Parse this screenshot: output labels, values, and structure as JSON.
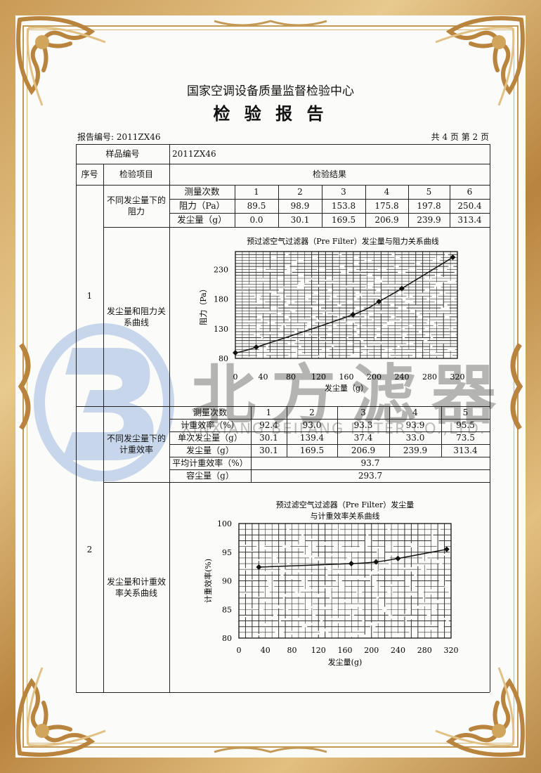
{
  "header": {
    "organization": "国家空调设备质量监督检验中心",
    "title": "检 验 报 告",
    "report_number": "报告编号: 2011ZX46",
    "page_info": "共 4 页 第 2 页"
  },
  "table": {
    "sample_label": "样品编号",
    "sample_value": "2011ZX46",
    "col_no": "序号",
    "col_item": "检验项目",
    "col_result": "检验结果",
    "items": [
      {
        "no": "1",
        "data_label": "不同发尘量下的阻力",
        "rows": [
          [
            "测量次数",
            "1",
            "2",
            "3",
            "4",
            "5",
            "6"
          ],
          [
            "阻力（Pa）",
            "89.5",
            "98.9",
            "153.8",
            "175.8",
            "197.8",
            "250.4"
          ],
          [
            "发尘量（g）",
            "0.0",
            "30.1",
            "169.5",
            "206.9",
            "239.9",
            "313.4"
          ]
        ],
        "curve_label": "发尘量和阻力关系曲线"
      },
      {
        "no": "2",
        "data_label": "不同发尘量下的计重效率",
        "rows": [
          [
            "测量次数",
            "1",
            "2",
            "3",
            "4",
            "5"
          ],
          [
            "计重效率（%）",
            "92.4",
            "93.0",
            "93.3",
            "93.9",
            "95.5"
          ],
          [
            "单次发尘量（g）",
            "30.1",
            "139.4",
            "37.4",
            "33.0",
            "73.5"
          ],
          [
            "发尘量（g）",
            "30.1",
            "169.5",
            "206.9",
            "239.9",
            "313.4"
          ]
        ],
        "avg_label": "平均计重效率（%）",
        "avg_value": "93.7",
        "capacity_label": "容尘量（g）",
        "capacity_value": "293.7",
        "curve_label": "发尘量和计重效率关系曲线"
      }
    ]
  },
  "chart_data": [
    {
      "type": "line",
      "title": "预过滤空气过滤器（Pre Filter）发尘量与阻力关系曲线",
      "xlabel": "发尘量（g）",
      "ylabel": "阻力（Pa）",
      "xlim": [
        0,
        320
      ],
      "ylim": [
        80,
        260
      ],
      "xticks": [
        "0",
        "40",
        "80",
        "120",
        "160",
        "200",
        "240",
        "280",
        "320"
      ],
      "yticks": [
        "80",
        "130",
        "180",
        "230"
      ],
      "grid": true,
      "x": [
        0.0,
        30.1,
        169.5,
        206.9,
        239.9,
        313.4
      ],
      "y": [
        89.5,
        98.9,
        153.8,
        175.8,
        197.8,
        250.4
      ]
    },
    {
      "type": "line",
      "title": [
        "预过滤空气过滤器（Pre Filter）发尘量",
        "与计重效率关系曲线"
      ],
      "xlabel": "发尘量(g)",
      "ylabel": "计重效率(%)",
      "xlim": [
        0,
        320
      ],
      "ylim": [
        80,
        100
      ],
      "xticks": [
        "0",
        "40",
        "80",
        "120",
        "160",
        "200",
        "240",
        "280",
        "320"
      ],
      "yticks": [
        "80",
        "85",
        "90",
        "95",
        "100"
      ],
      "grid": true,
      "x": [
        30.1,
        169.5,
        206.9,
        239.9,
        313.4
      ],
      "y": [
        92.4,
        93.0,
        93.3,
        93.9,
        95.5
      ]
    }
  ],
  "watermark": {
    "logo_letter": "B",
    "company_cn": "北方滤器",
    "company_en": "XINXIANG BEIFANG FILTER CO.,LTD."
  },
  "colors": {
    "frame_gold": "#c39a55",
    "watermark_blue": "#9db8e0",
    "watermark_gray": "#6e6e6e"
  }
}
